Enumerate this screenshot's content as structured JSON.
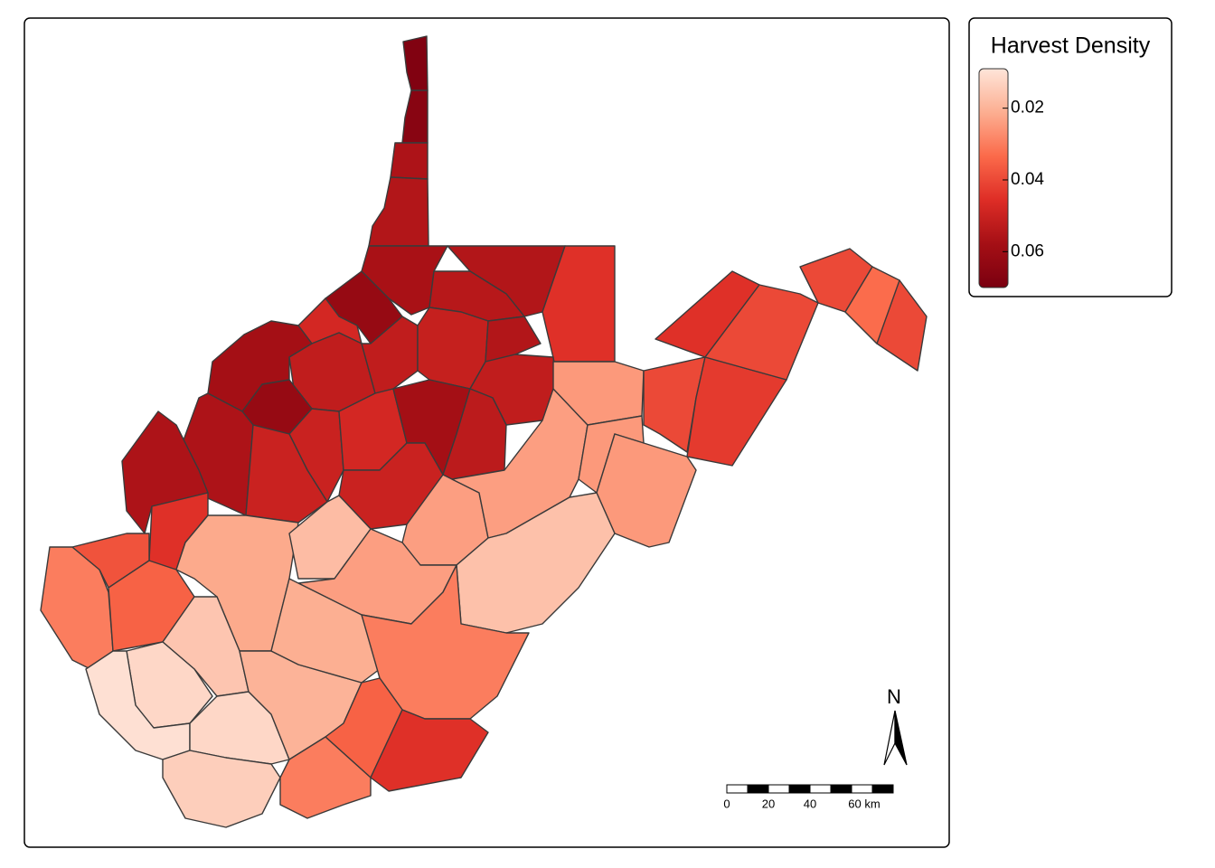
{
  "map": {
    "legend": {
      "title": "Harvest Density",
      "range": [
        0.009,
        0.07
      ],
      "ticks": [
        0.02,
        0.04,
        0.06
      ],
      "colors": [
        "#fee5d9",
        "#fcae91",
        "#fb6a4a",
        "#de2d26",
        "#a50f15",
        "#7a0010"
      ]
    },
    "regions": [
      0.068,
      0.066,
      0.056,
      0.055,
      0.057,
      0.062,
      0.055,
      0.054,
      0.045,
      0.048,
      0.058,
      0.052,
      0.052,
      0.051,
      0.055,
      0.052,
      0.062,
      0.056,
      0.05,
      0.048,
      0.058,
      0.053,
      0.05,
      0.05,
      0.056,
      0.045,
      0.022,
      0.018,
      0.024,
      0.024,
      0.025,
      0.025,
      0.04,
      0.043,
      0.045,
      0.04,
      0.04,
      0.04,
      0.033,
      0.025,
      0.017,
      0.024,
      0.03,
      0.038,
      0.035,
      0.016,
      0.012,
      0.01,
      0.012,
      0.02,
      0.021,
      0.03,
      0.035,
      0.045,
      0.014,
      0.03
    ],
    "north": "N",
    "scale_bar": {
      "ticks": [
        0,
        20,
        40,
        {
          "value": 60,
          "label": "60 km"
        }
      ]
    }
  }
}
